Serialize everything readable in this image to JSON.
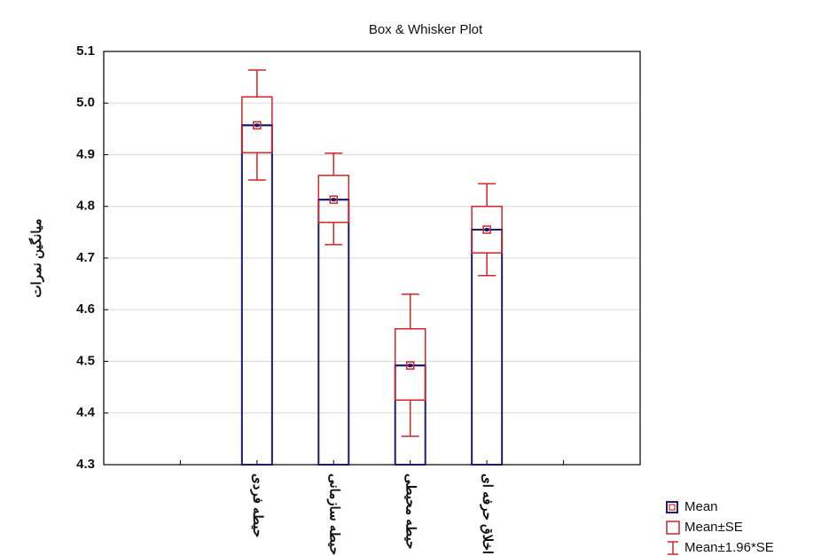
{
  "chart_data": {
    "type": "box_whisker",
    "title": "Box & Whisker Plot",
    "y_label": "میانگین نمرات",
    "categories": [
      null,
      null,
      "حیطه فردی",
      "حیطه سازمانی",
      "حیطه محیطی",
      "اخلاق حرفه ای",
      null,
      null
    ],
    "series": [
      {
        "name": "Mean",
        "color": "#1c1c6e",
        "values": [
          null,
          null,
          4.957,
          4.813,
          4.492,
          4.755,
          null,
          null
        ]
      },
      {
        "name": "Mean±SE",
        "color": "#d42424",
        "low": [
          null,
          null,
          4.904,
          4.769,
          4.425,
          4.71,
          null,
          null
        ],
        "high": [
          null,
          null,
          5.012,
          4.86,
          4.563,
          4.8,
          null,
          null
        ]
      },
      {
        "name": "Mean±1.96*SE",
        "color": "#d42424",
        "low": [
          null,
          null,
          4.851,
          4.726,
          4.355,
          4.666,
          null,
          null
        ],
        "high": [
          null,
          null,
          5.064,
          4.903,
          4.63,
          4.844,
          null,
          null
        ]
      }
    ],
    "ylim": [
      4.3,
      5.1
    ],
    "yticks": [
      4.3,
      4.4,
      4.5,
      4.6,
      4.7,
      4.8,
      4.9,
      {
        "value": 5,
        "label": "5.0"
      },
      5.1
    ],
    "grid": true
  }
}
